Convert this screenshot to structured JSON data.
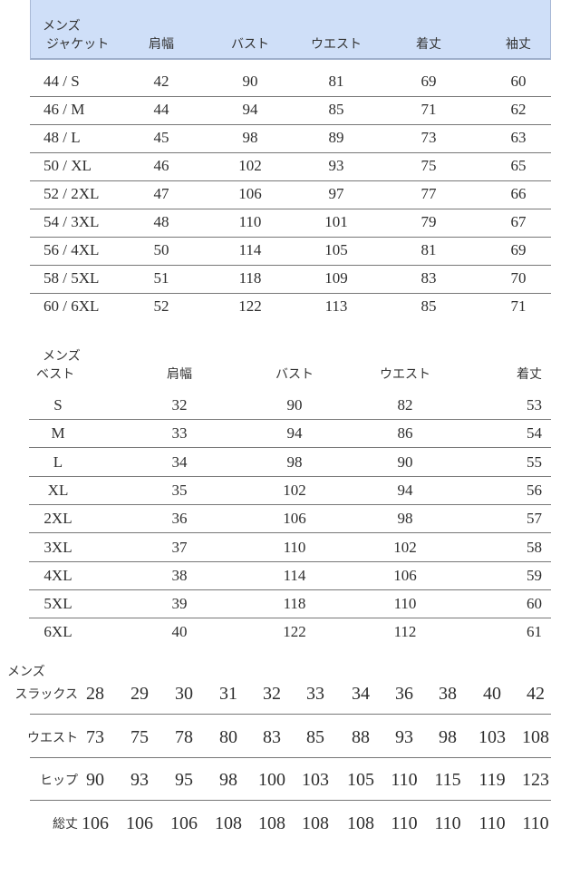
{
  "jacket": {
    "title_line1": "メンズ",
    "title_line2": "ジャケット",
    "headers": [
      "肩幅",
      "バスト",
      "ウエスト",
      "着丈",
      "袖丈"
    ],
    "header_color": "#cfdff8",
    "rows": [
      [
        "44 / S",
        "42",
        "90",
        "81",
        "69",
        "60"
      ],
      [
        "46 / M",
        "44",
        "94",
        "85",
        "71",
        "62"
      ],
      [
        "48 / L",
        "45",
        "98",
        "89",
        "73",
        "63"
      ],
      [
        "50 / XL",
        "46",
        "102",
        "93",
        "75",
        "65"
      ],
      [
        "52 / 2XL",
        "47",
        "106",
        "97",
        "77",
        "66"
      ],
      [
        "54 / 3XL",
        "48",
        "110",
        "101",
        "79",
        "67"
      ],
      [
        "56 / 4XL",
        "50",
        "114",
        "105",
        "81",
        "69"
      ],
      [
        "58 / 5XL",
        "51",
        "118",
        "109",
        "83",
        "70"
      ],
      [
        "60 / 6XL",
        "52",
        "122",
        "113",
        "85",
        "71"
      ]
    ]
  },
  "vest": {
    "title_line1": "メンズ",
    "title_line2": "ベスト",
    "headers": [
      "肩幅",
      "バスト",
      "ウエスト",
      "着丈"
    ],
    "rows": [
      [
        "S",
        "32",
        "90",
        "82",
        "53"
      ],
      [
        "M",
        "33",
        "94",
        "86",
        "54"
      ],
      [
        "L",
        "34",
        "98",
        "90",
        "55"
      ],
      [
        "XL",
        "35",
        "102",
        "94",
        "56"
      ],
      [
        "2XL",
        "36",
        "106",
        "98",
        "57"
      ],
      [
        "3XL",
        "37",
        "110",
        "102",
        "58"
      ],
      [
        "4XL",
        "38",
        "114",
        "106",
        "59"
      ],
      [
        "5XL",
        "39",
        "118",
        "110",
        "60"
      ],
      [
        "6XL",
        "40",
        "122",
        "112",
        "61"
      ]
    ]
  },
  "slacks": {
    "title_line1": "メンズ",
    "rows": [
      {
        "label": "スラックス",
        "values": [
          "28",
          "29",
          "30",
          "31",
          "32",
          "33",
          "34",
          "36",
          "38",
          "40",
          "42"
        ]
      },
      {
        "label": "ウエスト",
        "values": [
          "73",
          "75",
          "78",
          "80",
          "83",
          "85",
          "88",
          "93",
          "98",
          "103",
          "108"
        ]
      },
      {
        "label": "ヒップ",
        "values": [
          "90",
          "93",
          "95",
          "98",
          "100",
          "103",
          "105",
          "110",
          "115",
          "119",
          "123"
        ]
      },
      {
        "label": "総丈",
        "values": [
          "106",
          "106",
          "106",
          "108",
          "108",
          "108",
          "108",
          "110",
          "110",
          "110",
          "110"
        ]
      }
    ]
  }
}
